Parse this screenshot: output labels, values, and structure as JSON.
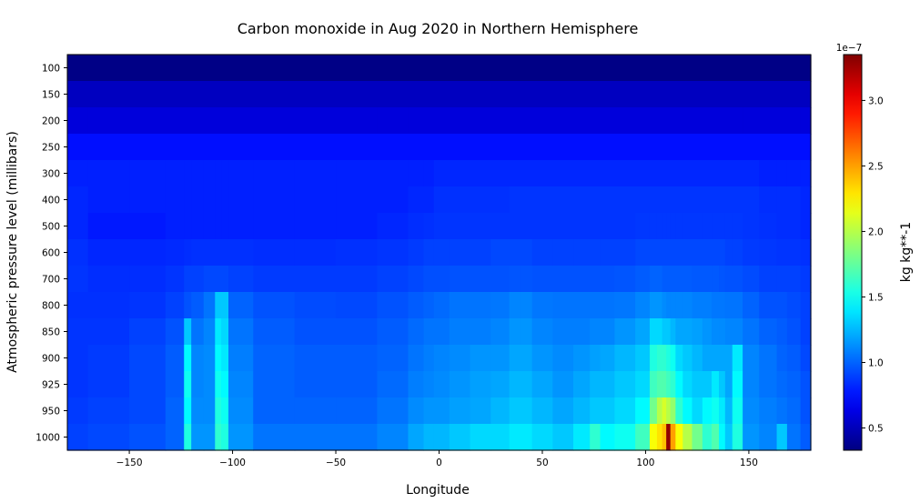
{
  "chart_data": {
    "type": "heatmap",
    "title": "Carbon monoxide in Aug 2020 in Northern Hemisphere",
    "xlabel": "Longitude",
    "ylabel": "Atmospheric pressure level (millibars)",
    "xlim": [
      -180,
      180
    ],
    "x_ticks": [
      -150,
      -100,
      -50,
      0,
      50,
      100,
      150
    ],
    "y_levels": [
      100,
      150,
      200,
      250,
      300,
      400,
      500,
      600,
      700,
      800,
      850,
      900,
      925,
      950,
      1000
    ],
    "colorbar": {
      "label": "kg kg**-1",
      "offset_label": "1e−7",
      "range": [
        0.33,
        3.35
      ],
      "ticks": [
        0.5,
        1.0,
        1.5,
        2.0,
        2.5,
        3.0
      ],
      "colormap": "jet"
    },
    "grid": false,
    "profile_longitudes": [
      -180,
      -160,
      -140,
      -125,
      -122,
      -118,
      -110,
      -107,
      -104,
      -100,
      -80,
      -60,
      -40,
      -20,
      -10,
      -5,
      0,
      10,
      20,
      30,
      38,
      40,
      50,
      60,
      70,
      76,
      80,
      90,
      100,
      104,
      107,
      109,
      111,
      113,
      116,
      120,
      125,
      130,
      134,
      137,
      140,
      144,
      150,
      160,
      167,
      170,
      180
    ],
    "values": [
      [
        0.35,
        0.35,
        0.35,
        0.35,
        0.35,
        0.35,
        0.35,
        0.35,
        0.35,
        0.35,
        0.35,
        0.35,
        0.35,
        0.35,
        0.35,
        0.35,
        0.35,
        0.35,
        0.35,
        0.35,
        0.35,
        0.35,
        0.35,
        0.35,
        0.35,
        0.35,
        0.35,
        0.35,
        0.35,
        0.35,
        0.35,
        0.35,
        0.35,
        0.35,
        0.35,
        0.35,
        0.35,
        0.35,
        0.35,
        0.35,
        0.35,
        0.35,
        0.35,
        0.35,
        0.35,
        0.35,
        0.35
      ],
      [
        0.52,
        0.52,
        0.52,
        0.52,
        0.52,
        0.52,
        0.52,
        0.52,
        0.52,
        0.52,
        0.52,
        0.52,
        0.52,
        0.52,
        0.52,
        0.52,
        0.52,
        0.52,
        0.52,
        0.52,
        0.52,
        0.52,
        0.52,
        0.52,
        0.52,
        0.52,
        0.52,
        0.52,
        0.52,
        0.52,
        0.52,
        0.52,
        0.52,
        0.52,
        0.52,
        0.52,
        0.52,
        0.52,
        0.52,
        0.52,
        0.52,
        0.52,
        0.52,
        0.52,
        0.52,
        0.52,
        0.52
      ],
      [
        0.6,
        0.6,
        0.6,
        0.6,
        0.6,
        0.6,
        0.6,
        0.6,
        0.6,
        0.6,
        0.6,
        0.6,
        0.6,
        0.6,
        0.6,
        0.6,
        0.6,
        0.6,
        0.6,
        0.6,
        0.6,
        0.6,
        0.6,
        0.6,
        0.6,
        0.6,
        0.6,
        0.6,
        0.6,
        0.6,
        0.6,
        0.6,
        0.6,
        0.6,
        0.6,
        0.6,
        0.6,
        0.6,
        0.6,
        0.6,
        0.6,
        0.6,
        0.6,
        0.6,
        0.6,
        0.6,
        0.6
      ],
      [
        0.75,
        0.75,
        0.75,
        0.75,
        0.75,
        0.75,
        0.75,
        0.75,
        0.75,
        0.75,
        0.75,
        0.75,
        0.75,
        0.75,
        0.75,
        0.75,
        0.75,
        0.75,
        0.75,
        0.75,
        0.75,
        0.75,
        0.75,
        0.75,
        0.75,
        0.75,
        0.75,
        0.75,
        0.75,
        0.75,
        0.75,
        0.75,
        0.75,
        0.75,
        0.75,
        0.75,
        0.75,
        0.75,
        0.75,
        0.75,
        0.75,
        0.75,
        0.75,
        0.75,
        0.75,
        0.75,
        0.75
      ],
      [
        0.8,
        0.8,
        0.8,
        0.8,
        0.8,
        0.8,
        0.8,
        0.8,
        0.8,
        0.8,
        0.8,
        0.8,
        0.8,
        0.8,
        0.8,
        0.8,
        0.82,
        0.82,
        0.82,
        0.82,
        0.82,
        0.82,
        0.82,
        0.82,
        0.82,
        0.82,
        0.82,
        0.82,
        0.82,
        0.82,
        0.82,
        0.82,
        0.82,
        0.82,
        0.82,
        0.82,
        0.82,
        0.82,
        0.82,
        0.82,
        0.82,
        0.82,
        0.82,
        0.8,
        0.8,
        0.8,
        0.8
      ],
      [
        0.82,
        0.8,
        0.8,
        0.8,
        0.8,
        0.8,
        0.8,
        0.8,
        0.8,
        0.8,
        0.8,
        0.8,
        0.8,
        0.8,
        0.82,
        0.82,
        0.85,
        0.85,
        0.85,
        0.85,
        0.86,
        0.86,
        0.86,
        0.86,
        0.86,
        0.86,
        0.86,
        0.86,
        0.86,
        0.86,
        0.86,
        0.86,
        0.86,
        0.86,
        0.86,
        0.86,
        0.86,
        0.86,
        0.86,
        0.86,
        0.86,
        0.86,
        0.86,
        0.84,
        0.84,
        0.84,
        0.82
      ],
      [
        0.82,
        0.78,
        0.78,
        0.8,
        0.8,
        0.8,
        0.8,
        0.8,
        0.8,
        0.8,
        0.8,
        0.8,
        0.8,
        0.82,
        0.84,
        0.85,
        0.86,
        0.86,
        0.86,
        0.86,
        0.86,
        0.86,
        0.86,
        0.86,
        0.86,
        0.86,
        0.86,
        0.86,
        0.87,
        0.87,
        0.87,
        0.87,
        0.87,
        0.87,
        0.87,
        0.87,
        0.87,
        0.87,
        0.87,
        0.87,
        0.87,
        0.87,
        0.86,
        0.85,
        0.84,
        0.84,
        0.82
      ],
      [
        0.85,
        0.82,
        0.82,
        0.83,
        0.84,
        0.85,
        0.85,
        0.85,
        0.85,
        0.85,
        0.84,
        0.84,
        0.85,
        0.86,
        0.88,
        0.9,
        0.9,
        0.9,
        0.9,
        0.92,
        0.92,
        0.92,
        0.9,
        0.9,
        0.9,
        0.9,
        0.9,
        0.9,
        0.92,
        0.92,
        0.92,
        0.92,
        0.92,
        0.92,
        0.92,
        0.92,
        0.92,
        0.92,
        0.92,
        0.92,
        0.9,
        0.9,
        0.88,
        0.87,
        0.86,
        0.86,
        0.85
      ],
      [
        0.86,
        0.84,
        0.84,
        0.86,
        0.9,
        0.9,
        0.92,
        0.92,
        0.92,
        0.9,
        0.88,
        0.88,
        0.88,
        0.9,
        0.92,
        0.94,
        0.94,
        0.95,
        0.95,
        0.95,
        0.96,
        0.96,
        0.95,
        0.95,
        0.95,
        0.95,
        0.95,
        0.96,
        0.98,
        1.0,
        1.0,
        0.98,
        0.98,
        0.98,
        0.98,
        0.98,
        0.97,
        0.97,
        0.97,
        0.96,
        0.95,
        0.95,
        0.93,
        0.9,
        0.9,
        0.9,
        0.88
      ],
      [
        0.85,
        0.85,
        0.86,
        0.9,
        0.95,
        0.98,
        1.05,
        1.3,
        1.3,
        1.0,
        0.95,
        0.93,
        0.92,
        0.95,
        0.98,
        1.0,
        1.02,
        1.05,
        1.05,
        1.06,
        1.1,
        1.1,
        1.06,
        1.05,
        1.05,
        1.05,
        1.05,
        1.06,
        1.1,
        1.15,
        1.15,
        1.12,
        1.1,
        1.1,
        1.1,
        1.1,
        1.08,
        1.08,
        1.06,
        1.06,
        1.05,
        1.05,
        1.0,
        0.95,
        0.95,
        0.93,
        0.9
      ],
      [
        0.86,
        0.86,
        0.9,
        0.95,
        1.3,
        1.05,
        1.1,
        1.4,
        1.35,
        1.05,
        0.98,
        0.95,
        0.95,
        0.98,
        1.02,
        1.05,
        1.05,
        1.08,
        1.08,
        1.1,
        1.15,
        1.15,
        1.1,
        1.08,
        1.08,
        1.1,
        1.1,
        1.15,
        1.2,
        1.35,
        1.35,
        1.3,
        1.3,
        1.25,
        1.2,
        1.2,
        1.18,
        1.15,
        1.12,
        1.12,
        1.1,
        1.1,
        1.05,
        1.0,
        0.98,
        0.95,
        0.9
      ],
      [
        0.86,
        0.88,
        0.92,
        0.98,
        1.45,
        1.1,
        1.12,
        1.45,
        1.4,
        1.08,
        1.0,
        0.98,
        0.98,
        1.0,
        1.05,
        1.08,
        1.1,
        1.12,
        1.15,
        1.15,
        1.2,
        1.2,
        1.15,
        1.12,
        1.15,
        1.18,
        1.2,
        1.25,
        1.3,
        1.55,
        1.6,
        1.6,
        1.55,
        1.5,
        1.35,
        1.3,
        1.25,
        1.2,
        1.2,
        1.2,
        1.2,
        1.4,
        1.1,
        1.05,
        1.0,
        0.98,
        0.92
      ],
      [
        0.86,
        0.88,
        0.92,
        0.98,
        1.5,
        1.1,
        1.12,
        1.5,
        1.45,
        1.1,
        1.0,
        0.98,
        0.98,
        1.02,
        1.08,
        1.1,
        1.12,
        1.15,
        1.18,
        1.2,
        1.25,
        1.25,
        1.2,
        1.15,
        1.2,
        1.25,
        1.25,
        1.3,
        1.35,
        1.65,
        1.7,
        1.7,
        1.65,
        1.6,
        1.45,
        1.35,
        1.3,
        1.3,
        1.4,
        1.3,
        1.2,
        1.45,
        1.1,
        1.05,
        1.02,
        1.0,
        0.95
      ],
      [
        0.88,
        0.9,
        0.92,
        1.0,
        1.45,
        1.12,
        1.12,
        1.55,
        1.5,
        1.12,
        1.0,
        1.0,
        1.0,
        1.05,
        1.12,
        1.15,
        1.15,
        1.18,
        1.2,
        1.25,
        1.3,
        1.3,
        1.25,
        1.2,
        1.25,
        1.3,
        1.3,
        1.35,
        1.45,
        1.8,
        2.0,
        2.1,
        2.0,
        1.9,
        1.6,
        1.45,
        1.35,
        1.45,
        1.5,
        1.4,
        1.25,
        1.5,
        1.12,
        1.08,
        1.05,
        1.02,
        0.95
      ],
      [
        0.9,
        0.92,
        0.95,
        1.0,
        1.55,
        1.15,
        1.15,
        1.6,
        1.55,
        1.15,
        1.05,
        1.05,
        1.05,
        1.1,
        1.2,
        1.25,
        1.25,
        1.3,
        1.35,
        1.35,
        1.4,
        1.4,
        1.35,
        1.3,
        1.4,
        1.6,
        1.45,
        1.5,
        1.65,
        2.2,
        2.3,
        2.4,
        3.3,
        2.5,
        2.2,
        2.0,
        1.8,
        1.6,
        1.7,
        1.45,
        1.3,
        1.55,
        1.15,
        1.1,
        1.3,
        1.05,
        0.98
      ]
    ]
  }
}
